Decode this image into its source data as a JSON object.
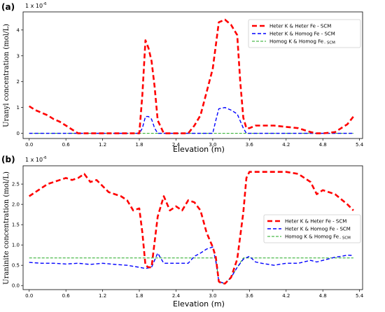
{
  "figure": {
    "panels": [
      "(a)",
      "(b)"
    ]
  },
  "colors": {
    "heter_heter": "#ff0000",
    "heter_homog": "#0000ff",
    "homog_homog": "#22aa22"
  },
  "chart_data": [
    {
      "type": "line",
      "panel_label": "(a)",
      "xlabel": "Elevation (m)",
      "ylabel": "Uranyl concentration (mol/L)",
      "y_scale_text": "1 x 10",
      "y_scale_exp": "-6",
      "xlim": [
        -0.1,
        5.45
      ],
      "ylim": [
        -0.2,
        4.7
      ],
      "x_ticks": [
        "0.0",
        "0.6",
        "1.2",
        "1.8",
        "2.4",
        "3.0",
        "3.6",
        "4.2",
        "4.8",
        "5.4"
      ],
      "y_ticks": [
        "0",
        "1",
        "2",
        "3",
        "4"
      ],
      "legend_position": "top-right",
      "legend": [
        {
          "main": "Heter K & Heter Fe - SCM",
          "sub": ""
        },
        {
          "main": "Heter K & Homog Fe - SCM",
          "sub": ""
        },
        {
          "main": "Homog K & Homog Fe",
          "sub": "- SCM"
        }
      ],
      "series": [
        {
          "name": "Heter K & Heter Fe - SCM",
          "color": "#ff0000",
          "style": "dashed-thick",
          "x": [
            0.0,
            0.1,
            0.2,
            0.3,
            0.4,
            0.5,
            0.6,
            0.7,
            0.8,
            1.0,
            1.2,
            1.4,
            1.6,
            1.8,
            1.85,
            1.9,
            1.95,
            2.0,
            2.05,
            2.1,
            2.2,
            2.4,
            2.6,
            2.7,
            2.8,
            2.9,
            3.0,
            3.05,
            3.1,
            3.2,
            3.3,
            3.4,
            3.45,
            3.5,
            3.55,
            3.6,
            3.7,
            3.8,
            4.0,
            4.2,
            4.4,
            4.6,
            4.7,
            4.8,
            5.0,
            5.1,
            5.2,
            5.3
          ],
          "values": [
            1.05,
            0.9,
            0.8,
            0.7,
            0.55,
            0.45,
            0.3,
            0.15,
            0.0,
            0.0,
            0.0,
            0.0,
            0.0,
            0.0,
            1.5,
            3.6,
            3.3,
            2.8,
            1.8,
            0.5,
            0.0,
            0.0,
            0.0,
            0.3,
            0.7,
            1.6,
            2.5,
            3.4,
            4.3,
            4.4,
            4.2,
            3.8,
            2.0,
            0.6,
            0.2,
            0.2,
            0.3,
            0.3,
            0.3,
            0.25,
            0.2,
            0.05,
            0.0,
            0.0,
            0.05,
            0.2,
            0.35,
            0.65
          ]
        },
        {
          "name": "Heter K & Homog Fe - SCM",
          "color": "#0000ff",
          "style": "dashed",
          "x": [
            0.0,
            1.8,
            1.85,
            1.9,
            1.95,
            2.0,
            2.05,
            2.1,
            2.2,
            3.0,
            3.05,
            3.1,
            3.2,
            3.3,
            3.4,
            3.5,
            3.55,
            3.6,
            5.3
          ],
          "values": [
            0.0,
            0.0,
            0.2,
            0.65,
            0.65,
            0.55,
            0.2,
            0.0,
            0.0,
            0.0,
            0.5,
            0.95,
            1.0,
            0.9,
            0.75,
            0.2,
            0.0,
            0.0,
            0.0
          ]
        },
        {
          "name": "Homog K & Homog Fe - SCM",
          "color": "#22aa22",
          "style": "dashed-thin",
          "x": [
            0.0,
            5.3
          ],
          "values": [
            0.0,
            0.0
          ]
        }
      ]
    },
    {
      "type": "line",
      "panel_label": "(b)",
      "xlabel": "Elevation (m)",
      "ylabel": "Uraninite concentration (mol/L)",
      "y_scale_text": "1 x 10",
      "y_scale_exp": "-6",
      "xlim": [
        -0.1,
        5.45
      ],
      "ylim": [
        -0.1,
        2.95
      ],
      "x_ticks": [
        "0.0",
        "0.6",
        "1.2",
        "1.8",
        "2.4",
        "3.0",
        "3.6",
        "4.2",
        "4.8",
        "5.4"
      ],
      "y_ticks": [
        "0.0",
        "0.5",
        "1.0",
        "1.5",
        "2.0",
        "2.5"
      ],
      "legend_position": "center-right",
      "legend": [
        {
          "main": "Heter K & Heter Fe - SCM",
          "sub": ""
        },
        {
          "main": "Heter K & Homog Fe - SCM",
          "sub": ""
        },
        {
          "main": "Homog K & Homog Fe",
          "sub": "- SCM"
        }
      ],
      "series": [
        {
          "name": "Heter K & Heter Fe - SCM",
          "color": "#ff0000",
          "style": "dashed-thick",
          "x": [
            0.0,
            0.1,
            0.2,
            0.3,
            0.4,
            0.5,
            0.6,
            0.7,
            0.8,
            0.9,
            1.0,
            1.1,
            1.2,
            1.3,
            1.4,
            1.5,
            1.6,
            1.7,
            1.8,
            1.85,
            1.9,
            1.95,
            2.0,
            2.1,
            2.2,
            2.3,
            2.4,
            2.5,
            2.6,
            2.7,
            2.8,
            2.9,
            3.0,
            3.05,
            3.1,
            3.15,
            3.2,
            3.3,
            3.4,
            3.5,
            3.55,
            3.6,
            3.7,
            3.8,
            4.0,
            4.2,
            4.4,
            4.6,
            4.7,
            4.8,
            5.0,
            5.2,
            5.3
          ],
          "values": [
            2.2,
            2.3,
            2.4,
            2.5,
            2.55,
            2.6,
            2.65,
            2.6,
            2.65,
            2.75,
            2.55,
            2.6,
            2.45,
            2.3,
            2.25,
            2.2,
            2.1,
            1.85,
            1.9,
            1.3,
            0.5,
            0.45,
            0.45,
            1.7,
            2.2,
            1.85,
            1.95,
            1.85,
            2.1,
            2.05,
            1.85,
            1.3,
            0.95,
            0.7,
            0.1,
            0.05,
            0.05,
            0.2,
            0.65,
            1.8,
            2.65,
            2.8,
            2.8,
            2.8,
            2.8,
            2.8,
            2.75,
            2.55,
            2.25,
            2.35,
            2.25,
            2.0,
            1.85
          ]
        },
        {
          "name": "Heter K & Homog Fe - SCM",
          "color": "#0000ff",
          "style": "dashed",
          "x": [
            0.0,
            0.2,
            0.4,
            0.6,
            0.8,
            1.0,
            1.2,
            1.4,
            1.6,
            1.8,
            1.9,
            2.0,
            2.1,
            2.2,
            2.4,
            2.6,
            2.7,
            2.8,
            2.9,
            3.0,
            3.05,
            3.1,
            3.2,
            3.3,
            3.4,
            3.5,
            3.6,
            3.7,
            3.8,
            4.0,
            4.2,
            4.4,
            4.6,
            4.7,
            4.8,
            5.0,
            5.1,
            5.2,
            5.3
          ],
          "values": [
            0.57,
            0.55,
            0.55,
            0.53,
            0.55,
            0.52,
            0.55,
            0.52,
            0.5,
            0.45,
            0.42,
            0.45,
            0.8,
            0.55,
            0.55,
            0.55,
            0.72,
            0.8,
            0.9,
            0.95,
            0.6,
            0.1,
            0.05,
            0.2,
            0.45,
            0.65,
            0.72,
            0.58,
            0.55,
            0.5,
            0.55,
            0.55,
            0.62,
            0.58,
            0.62,
            0.7,
            0.72,
            0.75,
            0.74
          ]
        },
        {
          "name": "Homog K & Homog Fe - SCM",
          "color": "#22aa22",
          "style": "dashed-thin",
          "x": [
            0.0,
            1.0,
            2.0,
            3.0,
            3.05,
            3.1,
            3.2,
            3.3,
            3.4,
            3.5,
            4.0,
            5.0,
            5.3
          ],
          "values": [
            0.68,
            0.68,
            0.68,
            0.68,
            0.68,
            0.08,
            0.05,
            0.2,
            0.45,
            0.68,
            0.68,
            0.68,
            0.68
          ]
        }
      ]
    }
  ]
}
